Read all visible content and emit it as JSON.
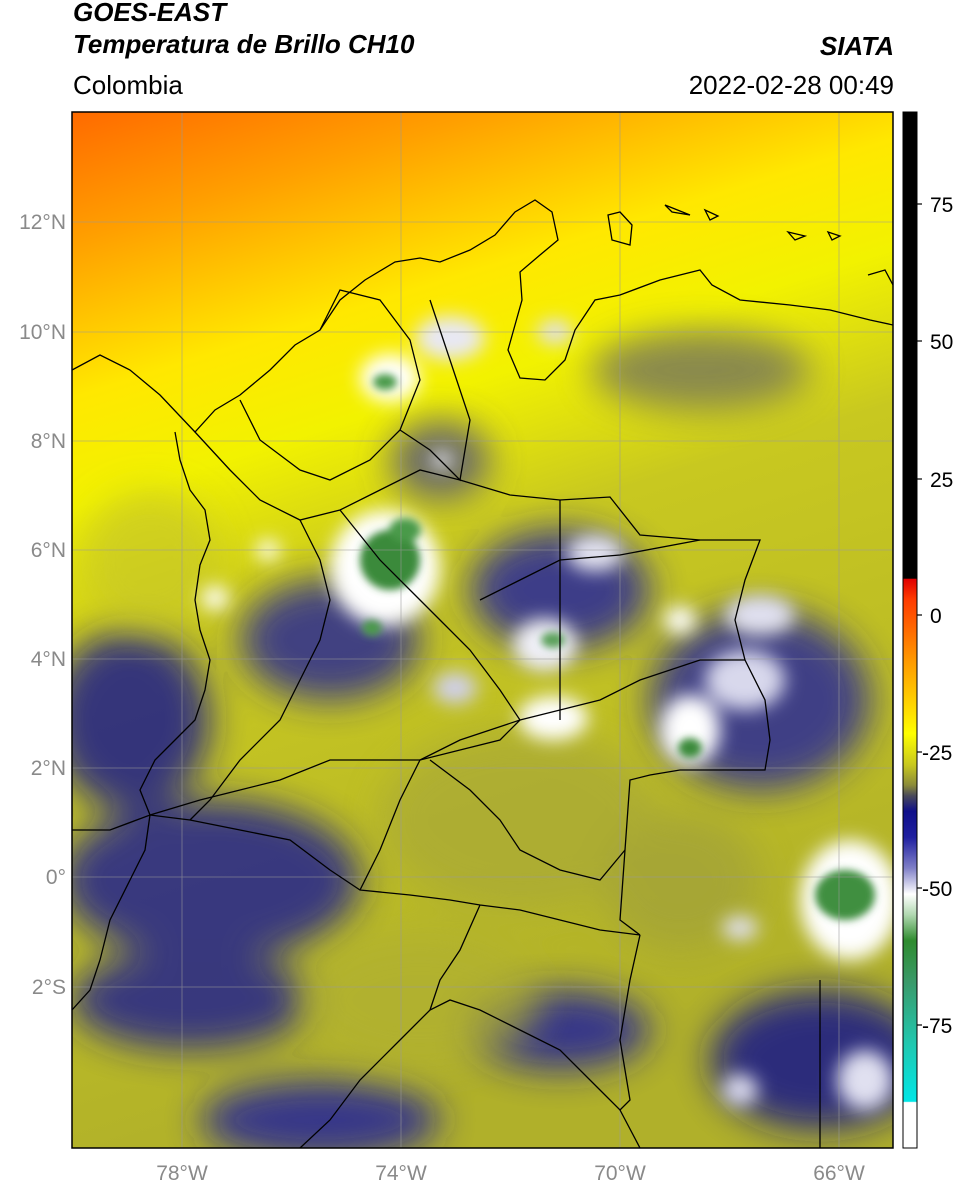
{
  "header": {
    "title_line1": "GOES-EAST",
    "title_line2": "Temperatura de Brillo CH10",
    "region": "Colombia",
    "agency": "SIATA",
    "datetime": "2022-02-28 00:49"
  },
  "map": {
    "lat_labels": [
      "12°N",
      "10°N",
      "8°N",
      "6°N",
      "4°N",
      "2°N",
      "0°",
      "2°S"
    ],
    "lon_labels": [
      "78°W",
      "74°W",
      "70°W",
      "66°W"
    ],
    "extent": {
      "lon_min": -79.6,
      "lon_max": -64.5,
      "lat_min": -5.0,
      "lat_max": 14.0
    }
  },
  "colorbar": {
    "ticks": [
      "75",
      "50",
      "25",
      "0",
      "-25",
      "-50",
      "-75"
    ],
    "tick_values": [
      75,
      50,
      25,
      0,
      -25,
      -50,
      -75
    ],
    "range": [
      -95,
      90
    ],
    "colors": {
      "black": "#000000",
      "red": "#ff1a00",
      "orange": "#ff8a00",
      "yellow": "#ffff00",
      "olive": "#a6a62a",
      "navy": "#10108a",
      "white": "#ffffff",
      "green": "#2e8b2e",
      "cyan": "#00e6e6"
    }
  }
}
